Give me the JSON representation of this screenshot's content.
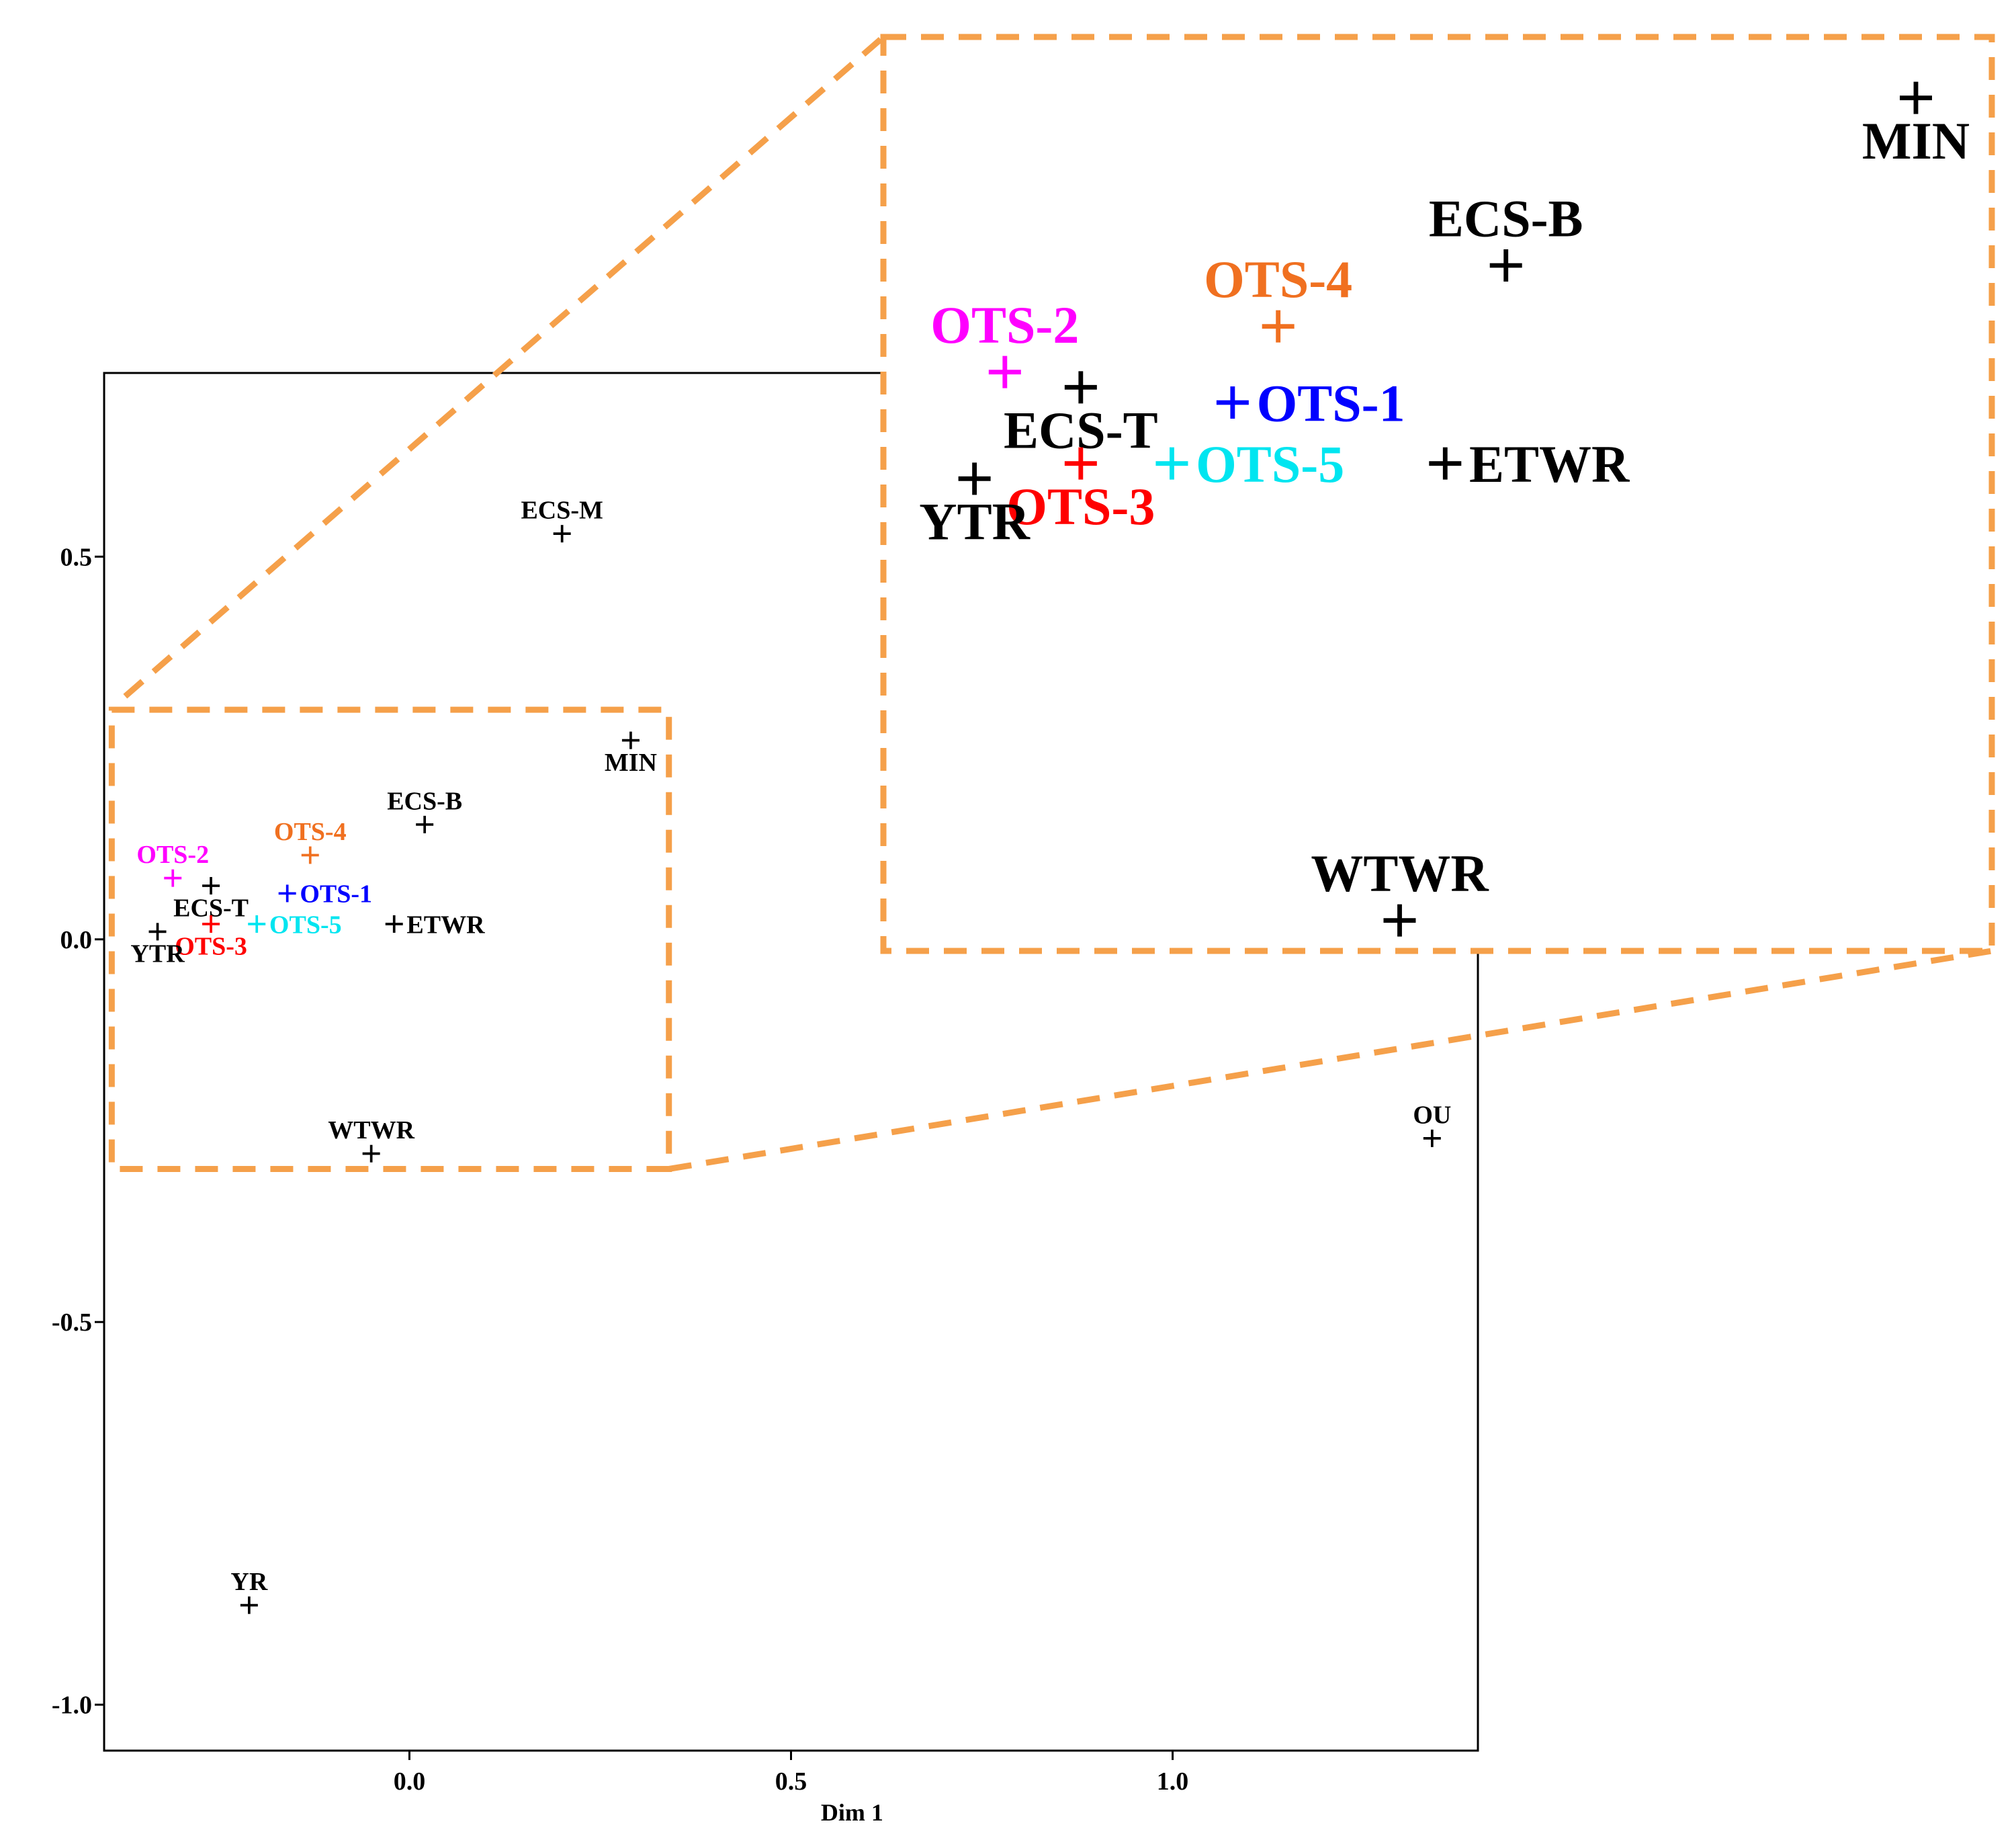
{
  "chart_data": {
    "type": "scatter",
    "xlabel": "Dim 1",
    "ylabel": "",
    "xlim": [
      -0.4,
      1.4
    ],
    "ylim": [
      -1.06,
      0.74
    ],
    "xticks": [
      {
        "value": 0.0,
        "label": "0.0"
      },
      {
        "value": 0.5,
        "label": "0.5"
      },
      {
        "value": 1.0,
        "label": "1.0"
      }
    ],
    "yticks": [
      {
        "value": 0.5,
        "label": "0.5"
      },
      {
        "value": 0.0,
        "label": "0.0"
      },
      {
        "value": -0.5,
        "label": "-0.5"
      },
      {
        "value": -1.0,
        "label": "-1.0"
      }
    ],
    "points": [
      {
        "name": "ECS-M",
        "x": 0.2,
        "y": 0.53,
        "color": "#000000",
        "label_pos": "above"
      },
      {
        "name": "MIN",
        "x": 0.29,
        "y": 0.26,
        "color": "#000000",
        "label_pos": "below"
      },
      {
        "name": "ECS-B",
        "x": 0.02,
        "y": 0.15,
        "color": "#000000",
        "label_pos": "above"
      },
      {
        "name": "OTS-4",
        "x": -0.13,
        "y": 0.11,
        "color": "#f07020",
        "label_pos": "above"
      },
      {
        "name": "OTS-2",
        "x": -0.31,
        "y": 0.08,
        "color": "#ff00ff",
        "label_pos": "above"
      },
      {
        "name": "ECS-T",
        "x": -0.26,
        "y": 0.07,
        "color": "#000000",
        "label_pos": "below"
      },
      {
        "name": "OTS-1",
        "x": -0.16,
        "y": 0.06,
        "color": "#0000ff",
        "label_pos": "right"
      },
      {
        "name": "OTS-5",
        "x": -0.2,
        "y": 0.02,
        "color": "#00e5f0",
        "label_pos": "right"
      },
      {
        "name": "ETWR",
        "x": -0.02,
        "y": 0.02,
        "color": "#000000",
        "label_pos": "right"
      },
      {
        "name": "OTS-3",
        "x": -0.26,
        "y": 0.02,
        "color": "#ff0000",
        "label_pos": "below"
      },
      {
        "name": "YTR",
        "x": -0.33,
        "y": 0.01,
        "color": "#000000",
        "label_pos": "below"
      },
      {
        "name": "WTWR",
        "x": -0.05,
        "y": -0.28,
        "color": "#000000",
        "label_pos": "above"
      },
      {
        "name": "OU",
        "x": 1.34,
        "y": -0.26,
        "color": "#000000",
        "label_pos": "above"
      },
      {
        "name": "YR",
        "x": -0.21,
        "y": -0.87,
        "color": "#000000",
        "label_pos": "above"
      }
    ],
    "zoom_region": {
      "x": [
        -0.39,
        0.34
      ],
      "y": [
        -0.3,
        0.3
      ]
    },
    "zoom_color": "#f5a04a",
    "grid": false,
    "legend": "none"
  }
}
